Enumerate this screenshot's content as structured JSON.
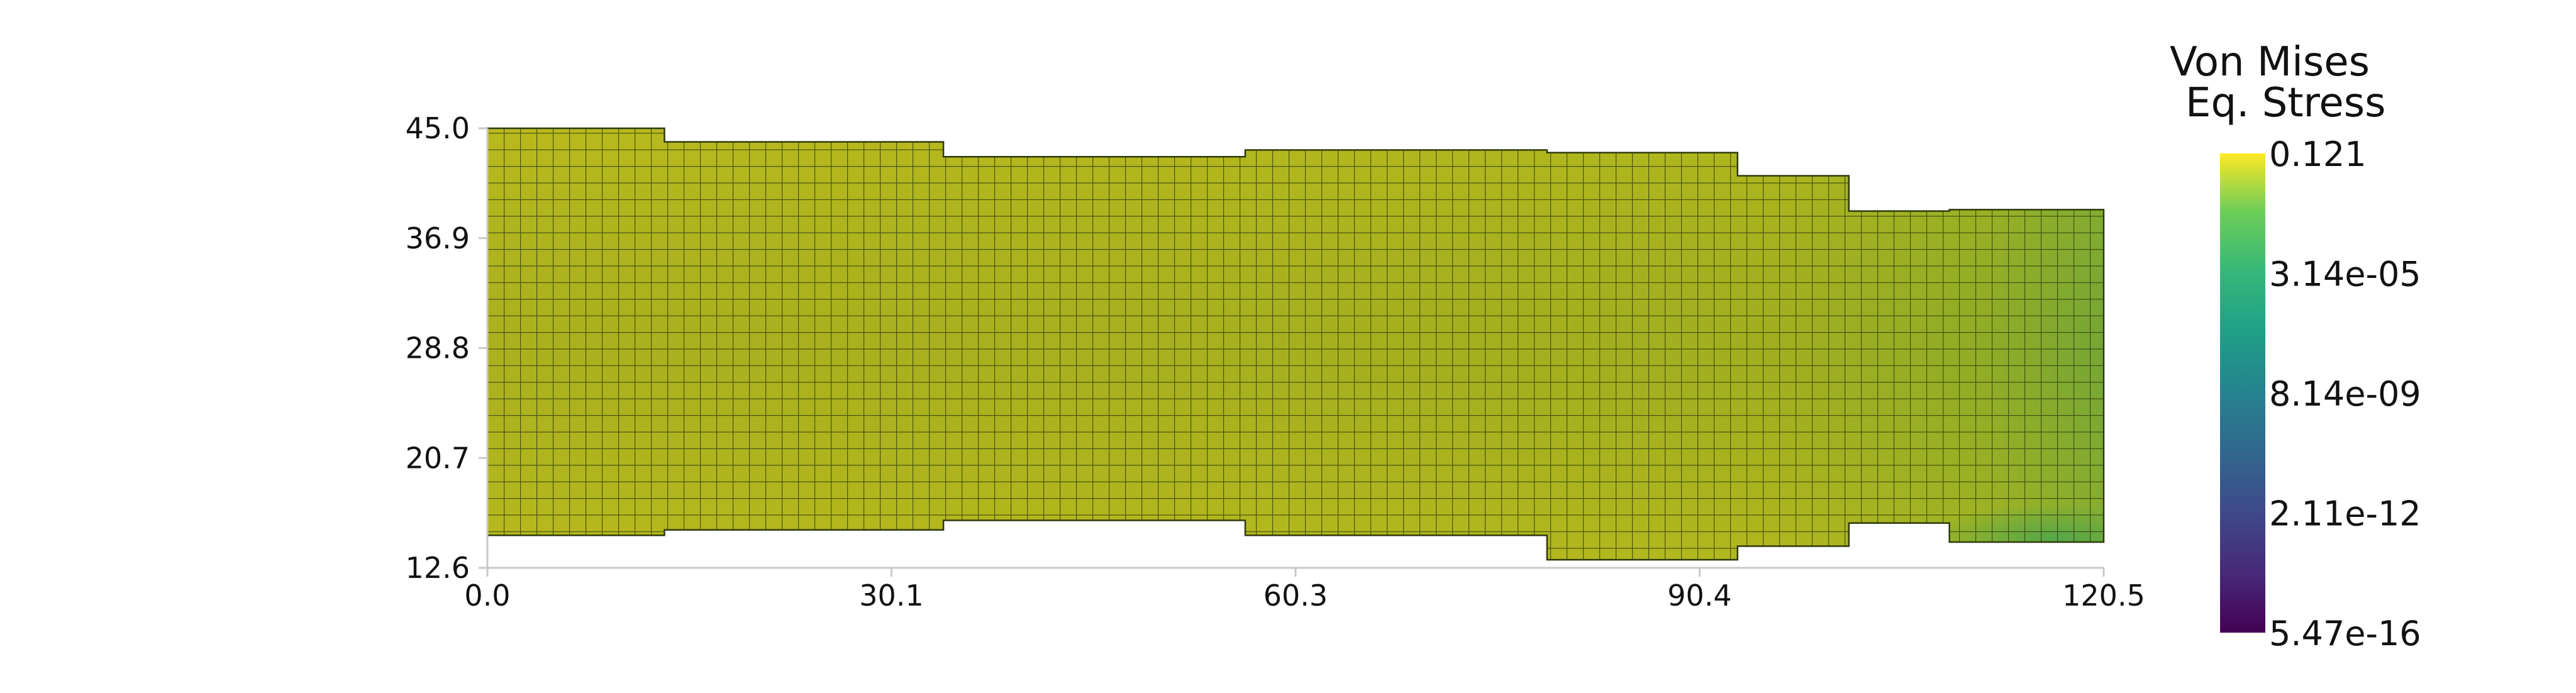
{
  "chart_data": {
    "type": "heatmap",
    "title": "",
    "xlabel": "",
    "ylabel": "",
    "xlim": [
      0.0,
      120.5
    ],
    "ylim": [
      12.6,
      45.0
    ],
    "x_ticks": [
      "0.0",
      "30.1",
      "60.3",
      "90.4",
      "120.5"
    ],
    "y_ticks": [
      "12.6",
      "20.7",
      "28.8",
      "36.9",
      "45.0"
    ],
    "grid": false,
    "mesh": {
      "description_field": "Von Mises equivalent stress over a deformed quadrilateral mesh",
      "segments": [
        {
          "x0": 0.0,
          "x1": 13.2,
          "y_bottom": 15.0,
          "y_top": 45.0
        },
        {
          "x0": 13.2,
          "x1": 34.0,
          "y_bottom": 15.4,
          "y_top": 44.0
        },
        {
          "x0": 34.0,
          "x1": 56.5,
          "y_bottom": 16.1,
          "y_top": 42.9
        },
        {
          "x0": 56.5,
          "x1": 79.0,
          "y_bottom": 15.0,
          "y_top": 43.4
        },
        {
          "x0": 79.0,
          "x1": 93.2,
          "y_bottom": 13.2,
          "y_top": 43.2
        },
        {
          "x0": 93.2,
          "x1": 101.5,
          "y_bottom": 14.2,
          "y_top": 41.5
        },
        {
          "x0": 101.5,
          "x1": 109.0,
          "y_bottom": 15.9,
          "y_top": 38.9
        },
        {
          "x0": 109.0,
          "x1": 120.5,
          "y_bottom": 14.5,
          "y_top": 39.0
        }
      ]
    },
    "colorbar": {
      "title_lines": [
        "Von Mises",
        "Eq. Stress"
      ],
      "colormap": "viridis",
      "scale": "log",
      "labels": [
        "0.121",
        "3.14e-05",
        "8.14e-09",
        "2.11e-12",
        "5.47e-16"
      ]
    },
    "colors": {
      "mesh_main": "#b7b820",
      "mesh_edge": "#2e3a0a",
      "axis": "#c8c8c8"
    }
  }
}
